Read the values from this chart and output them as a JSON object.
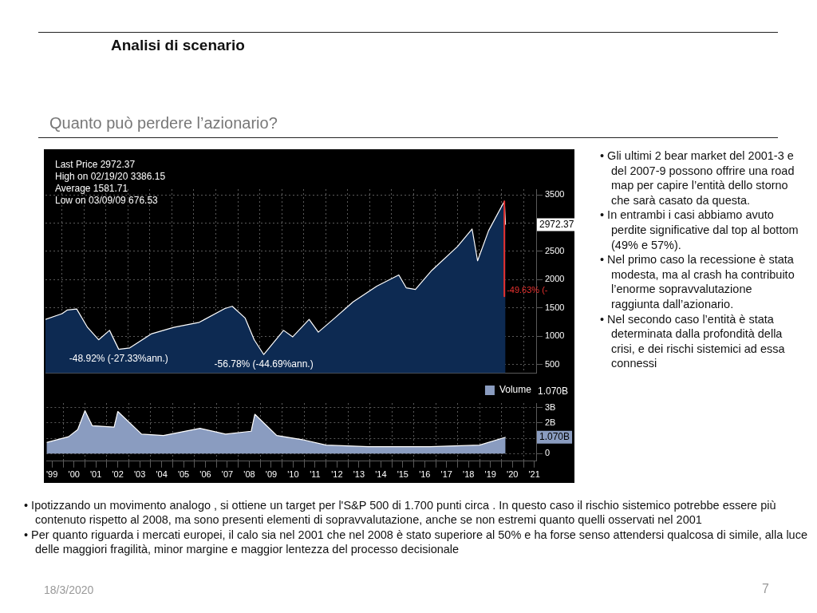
{
  "chart_data": [
    {
      "type": "area",
      "title": "Analisi di scenario",
      "subtitle": "Quanto può perdere l’azionario?",
      "series": [
        {
          "color": "#0d2a52",
          "x": [
            "1999-04",
            "2000-01",
            "2000-04",
            "2000-09",
            "2001-03",
            "2001-09",
            "2002-03",
            "2002-08",
            "2003-02",
            "2004-02",
            "2005-02",
            "2006-04",
            "2007-06",
            "2007-10",
            "2008-05",
            "2008-10",
            "2009-03-09",
            "2010-02",
            "2010-07",
            "2011-04",
            "2011-09",
            "2012-06",
            "2013-04",
            "2014-05",
            "2015-05",
            "2015-09",
            "2016-02",
            "2016-11",
            "2018-01",
            "2018-09",
            "2018-12",
            "2019-06",
            "2020-02-19",
            "2020-03-09"
          ],
          "values": [
            1298,
            1400,
            1466,
            1482,
            1157,
            938,
            1105,
            770,
            796,
            1046,
            1157,
            1247,
            1491,
            1530,
            1324,
            938,
            677,
            1105,
            989,
            1298,
            1073,
            1324,
            1607,
            1885,
            2084,
            1857,
            1829,
            2165,
            2586,
            2895,
            2334,
            2865,
            3386,
            2972
          ]
        },
        {
          "type": "line",
          "color": "#e8312f",
          "x": [
            "2020-02-19",
            "2020-02-19"
          ],
          "values": [
            3386,
            1706
          ]
        }
      ],
      "xlim": [
        "1999-04",
        "2021-08"
      ],
      "xticks": [
        {
          "value": "2000-01",
          "label": null
        },
        {
          "value": "2001-01",
          "label": null
        },
        {
          "value": "2002-01",
          "label": null
        },
        {
          "value": "2003-01",
          "label": null
        },
        {
          "value": "2004-01",
          "label": null
        },
        {
          "value": "2005-01",
          "label": null
        },
        {
          "value": "2006-01",
          "label": null
        },
        {
          "value": "2007-01",
          "label": null
        },
        {
          "value": "2008-01",
          "label": null
        },
        {
          "value": "2009-01",
          "label": null
        },
        {
          "value": "2010-01",
          "label": null
        },
        {
          "value": "2011-01",
          "label": null
        },
        {
          "value": "2012-01",
          "label": null
        },
        {
          "value": "2013-01",
          "label": null
        },
        {
          "value": "2014-01",
          "label": null
        },
        {
          "value": "2015-01",
          "label": null
        },
        {
          "value": "2016-01",
          "label": null
        },
        {
          "value": "2017-01",
          "label": null
        },
        {
          "value": "2018-01",
          "label": null
        },
        {
          "value": "2019-01",
          "label": null
        },
        {
          "value": "2020-01",
          "label": null
        },
        {
          "value": "2021-01",
          "label": null
        }
      ],
      "ylim": [
        350,
        3600
      ],
      "yticks": [
        500,
        1000,
        1500,
        2000,
        2500,
        {
          "value": 3000,
          "label": null
        },
        3500
      ],
      "grid": true,
      "marker": "none",
      "tick_labels": "y",
      "annotations": [
        "Last Price 2972.37",
        "High on 02/19/20 3386.15",
        "Average 1581.71",
        "Low on 03/09/09 676.53",
        "2972.37",
        "• Gli ultimi 2 bear market del 2001-3 e del 2007-9 possono offrire una road map per capire l’entità dello storno che sarà casato da questa.",
        "• In entrambi i casi abbiamo avuto perdite significative dal top al bottom (49% e 57%).",
        "• Nel primo caso la recessione è stata modesta, ma al crash ha contribuito l’enorme sopravvalutazione raggiunta dall’azionario.",
        "• Nel secondo caso l’entità è stata determinata dalla profondità della crisi, e dei rischi sistemici ad essa connessi",
        "• Ipotizzando un movimento analogo , si ottiene un target per l'S&P 500 di 1.700 punti circa . In questo caso il rischio sistemico potrebbe essere più contenuto rispetto al 2008, ma sono presenti elementi di sopravvalutazione, anche se non estremi quanto quelli osservati nel 2001",
        "• Per quanto riguarda i mercati europei, il calo sia nel 2001 che nel 2008 è stato superiore al 50% e ha forse senso attendersi qualcosa di simile, alla luce delle maggiori fragilità, minor margine e maggior lentezza del processo decisionale",
        "18/3/2020",
        "7",
        {
          "text": "-48.92% (-27.33%ann.)",
          "x": "2002-08",
          "y": 770
        },
        {
          "text": "-56.78% (-44.69%ann.)",
          "x": "2009-03-09",
          "y": 677
        },
        {
          "text": "-49.63% (-",
          "x": "2020-02-19",
          "y": 1706
        }
      ]
    },
    {
      "type": "area",
      "series": [
        {
          "name": "Volume",
          "color": "#8a9cc0",
          "x": [
            "1999-04",
            "2000-04",
            "2000-09",
            "2001-01",
            "2001-05",
            "2002-05",
            "2002-07",
            "2003-08",
            "2004-08",
            "2006-04",
            "2007-06",
            "2008-08",
            "2008-10",
            "2009-10",
            "2010-12",
            "2012-01",
            "2013-12",
            "2016-10",
            "2019-01",
            "2020-03-09"
          ],
          "values": [
            0.72,
            1.1,
            1.56,
            2.8,
            1.82,
            1.73,
            2.75,
            1.27,
            1.18,
            1.65,
            1.27,
            1.46,
            2.57,
            1.18,
            0.91,
            0.55,
            0.45,
            0.45,
            0.55,
            1.07
          ]
        }
      ],
      "xlim": [
        "1999-04",
        "2021-08"
      ],
      "xticks": [
        {
          "value": "1999-07",
          "label": "'99"
        },
        {
          "value": "2000-01",
          "label": null
        },
        {
          "value": "2000-07",
          "label": "'00"
        },
        {
          "value": "2001-01",
          "label": null
        },
        {
          "value": "2001-07",
          "label": "'01"
        },
        {
          "value": "2002-01",
          "label": null
        },
        {
          "value": "2002-07",
          "label": "'02"
        },
        {
          "value": "2003-01",
          "label": null
        },
        {
          "value": "2003-07",
          "label": "'03"
        },
        {
          "value": "2004-01",
          "label": null
        },
        {
          "value": "2004-07",
          "label": "'04"
        },
        {
          "value": "2005-01",
          "label": null
        },
        {
          "value": "2005-07",
          "label": "'05"
        },
        {
          "value": "2006-01",
          "label": null
        },
        {
          "value": "2006-07",
          "label": "'06"
        },
        {
          "value": "2007-01",
          "label": null
        },
        {
          "value": "2007-07",
          "label": "'07"
        },
        {
          "value": "2008-01",
          "label": null
        },
        {
          "value": "2008-07",
          "label": "'08"
        },
        {
          "value": "2009-01",
          "label": null
        },
        {
          "value": "2009-07",
          "label": "'09"
        },
        {
          "value": "2010-01",
          "label": null
        },
        {
          "value": "2010-07",
          "label": "'10"
        },
        {
          "value": "2011-01",
          "label": null
        },
        {
          "value": "2011-07",
          "label": "'11"
        },
        {
          "value": "2012-01",
          "label": null
        },
        {
          "value": "2012-07",
          "label": "'12"
        },
        {
          "value": "2013-01",
          "label": null
        },
        {
          "value": "2013-07",
          "label": "'13"
        },
        {
          "value": "2014-01",
          "label": null
        },
        {
          "value": "2014-07",
          "label": "'14"
        },
        {
          "value": "2015-01",
          "label": null
        },
        {
          "value": "2015-07",
          "label": "'15"
        },
        {
          "value": "2016-01",
          "label": null
        },
        {
          "value": "2016-07",
          "label": "'16"
        },
        {
          "value": "2017-01",
          "label": null
        },
        {
          "value": "2017-07",
          "label": "'17"
        },
        {
          "value": "2018-01",
          "label": null
        },
        {
          "value": "2018-07",
          "label": "'18"
        },
        {
          "value": "2019-01",
          "label": null
        },
        {
          "value": "2019-07",
          "label": "'19"
        },
        {
          "value": "2020-01",
          "label": null
        },
        {
          "value": "2020-07",
          "label": "'20"
        },
        {
          "value": "2021-01",
          "label": null
        },
        {
          "value": "2021-07",
          "label": "'21"
        }
      ],
      "ylim": [
        -0.5,
        3.3
      ],
      "yticks": [
        {
          "value": 0,
          "label": "0"
        },
        {
          "value": 1,
          "label": null
        },
        {
          "value": 2,
          "label": "2B"
        },
        {
          "value": 3,
          "label": "3B"
        }
      ],
      "grid": true,
      "marker": "none",
      "legend": "top right",
      "annotations": [
        "1.070B",
        "1.070B"
      ]
    }
  ]
}
